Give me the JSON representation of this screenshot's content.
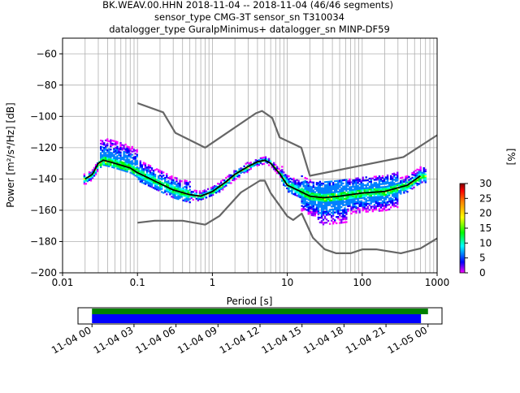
{
  "chart_data": [
    {
      "type": "heatmap",
      "subtype": "probabilistic-psd",
      "title_lines": [
        "BK.WEAV.00.HHN   2018-11-04 -- 2018-11-04  (46/46 segments)",
        "sensor_type CMG-3T sensor_sn T310034",
        "datalogger_type GuralpMinimus+ datalogger_sn MINP-DF59"
      ],
      "xlabel": "Period [s]",
      "ylabel": "Power [m²/s⁴/Hz] [dB]",
      "xscale": "log",
      "xlim": [
        0.01,
        1000
      ],
      "ylim": [
        -200,
        -50
      ],
      "x_ticks": [
        0.01,
        0.1,
        1,
        10,
        100,
        1000
      ],
      "x_tick_labels": [
        "0.01",
        "0.1",
        "1",
        "10",
        "100",
        "1000"
      ],
      "y_ticks": [
        -200,
        -180,
        -160,
        -140,
        -120,
        -100,
        -80,
        -60
      ],
      "y_tick_labels": [
        "−200",
        "−180",
        "−160",
        "−140",
        "−120",
        "−100",
        "−80",
        "−60"
      ],
      "grid": true,
      "colorbar": {
        "label": "[%]",
        "range": [
          0,
          30
        ],
        "ticks": [
          0,
          5,
          10,
          15,
          20,
          25,
          30
        ],
        "colormap": [
          "#ff00ff",
          "#0000ff",
          "#00ffff",
          "#00ff00",
          "#ffff00",
          "#ff8000",
          "#ff0000",
          "#800000"
        ]
      },
      "series": [
        {
          "name": "mode",
          "color": "#000000",
          "x": [
            0.02,
            0.025,
            0.03,
            0.035,
            0.05,
            0.08,
            0.1,
            0.15,
            0.2,
            0.3,
            0.5,
            0.7,
            1,
            1.5,
            2,
            3,
            4,
            5,
            6,
            8,
            10,
            15,
            20,
            30,
            50,
            100,
            200,
            400,
            600
          ],
          "y": [
            -140,
            -137,
            -130,
            -128,
            -130,
            -133,
            -136,
            -140,
            -143,
            -147,
            -150,
            -151,
            -148,
            -142,
            -137,
            -132,
            -129,
            -128,
            -130,
            -137,
            -144,
            -148,
            -151,
            -152,
            -151,
            -149,
            -148,
            -144,
            -138
          ]
        },
        {
          "name": "high-noise-model",
          "color": "#666666",
          "x": [
            0.1,
            0.22,
            0.32,
            0.8,
            3.8,
            4.6,
            6.3,
            7.9,
            15.4,
            20,
            354.8,
            1000
          ],
          "y": [
            -91.5,
            -97.4,
            -110.5,
            -120,
            -98,
            -96.5,
            -101,
            -113.5,
            -120,
            -138,
            -126,
            -112
          ]
        },
        {
          "name": "low-noise-model",
          "color": "#666666",
          "x": [
            0.1,
            0.17,
            0.4,
            0.8,
            1.24,
            2.4,
            4.3,
            5,
            6,
            10,
            12,
            15.6,
            21.9,
            31.6,
            45,
            70,
            101,
            154,
            328,
            600,
            1000
          ],
          "y": [
            -168,
            -166.7,
            -166.7,
            -169.2,
            -163.7,
            -148.6,
            -141.1,
            -141.1,
            -149,
            -163.8,
            -166.2,
            -162.1,
            -177.5,
            -185,
            -187.5,
            -187.5,
            -185,
            -185,
            -187.5,
            -184.4,
            -178
          ]
        }
      ]
    },
    {
      "type": "timeline",
      "x_ticks": [
        "11-04 00",
        "11-04 03",
        "11-04 06",
        "11-04 09",
        "11-04 12",
        "11-04 15",
        "11-04 18",
        "11-04 21",
        "11-05 00"
      ],
      "xlim_hours": [
        -1,
        25
      ],
      "bars": [
        {
          "color": "#008000",
          "start_hour": 0,
          "end_hour": 24.0
        },
        {
          "color": "#0000ff",
          "start_hour": 0,
          "end_hour": 23.5
        }
      ]
    }
  ]
}
